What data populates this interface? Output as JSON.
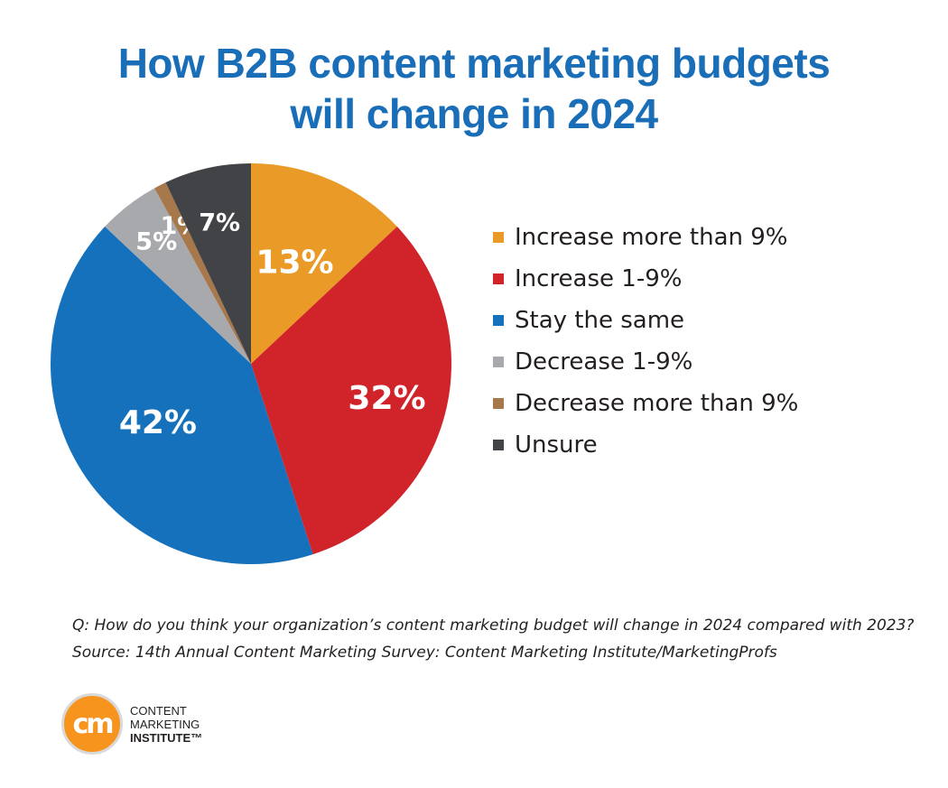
{
  "title_line1": "How B2B content marketing budgets",
  "title_line2": "will change in 2024",
  "chart_data": {
    "type": "pie",
    "title": "How B2B content marketing budgets will change in 2024",
    "legend_position": "right",
    "categories": [
      "Increase more than 9%",
      "Increase 1-9%",
      "Stay the same",
      "Decrease 1-9%",
      "Decrease more than 9%",
      "Unsure"
    ],
    "values": [
      13,
      32,
      42,
      5,
      1,
      7
    ],
    "labels": [
      "13%",
      "32%",
      "42%",
      "5%",
      "1%",
      "7%"
    ],
    "colors": [
      "#e99a27",
      "#d1232a",
      "#1571bb",
      "#a8a9ad",
      "#a7784b",
      "#424347"
    ]
  },
  "footer": {
    "question": "Q: How do you think your organization’s content marketing budget will change in 2024 compared with 2023?",
    "source": "Source: 14th Annual Content Marketing Survey: Content Marketing Institute/MarketingProfs"
  },
  "logo": {
    "mark": "cm",
    "line1": "CONTENT",
    "line2": "MARKETING",
    "line3": "INSTITUTE™"
  }
}
